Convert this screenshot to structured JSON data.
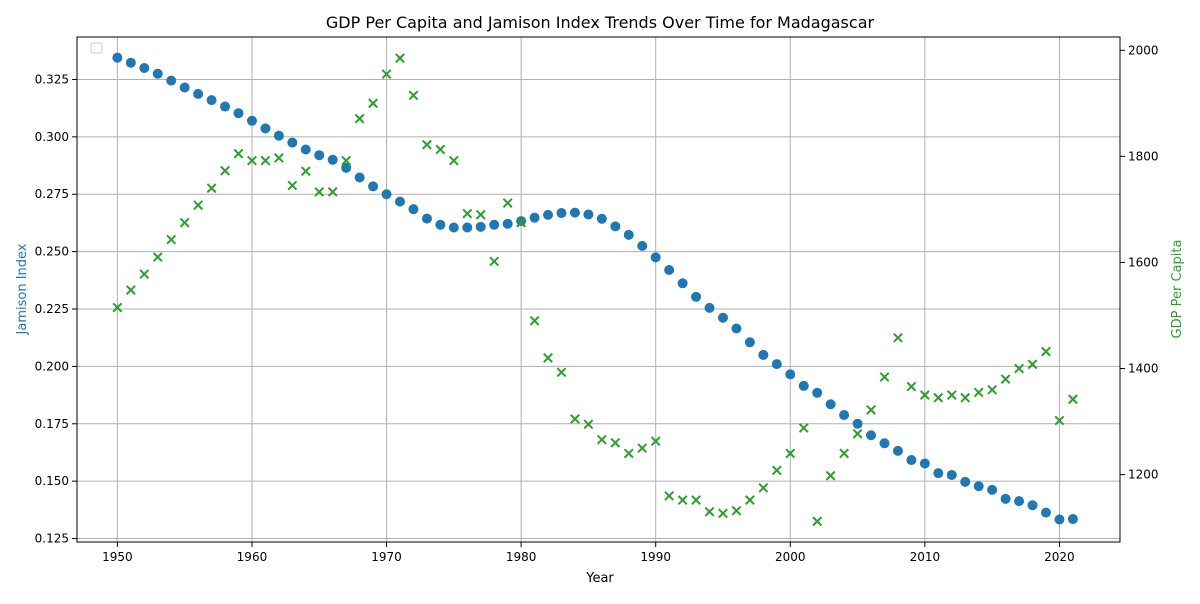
{
  "chart_data": {
    "type": "scatter",
    "title": "GDP Per Capita and Jamison Index Trends Over Time for Madagascar",
    "xlabel": "Year",
    "ylabel_left": "Jamison Index",
    "ylabel_right": "GDP Per Capita",
    "xlim": [
      1947,
      2024.5
    ],
    "ylim_left": [
      0.1235,
      0.3435
    ],
    "ylim_right": [
      1073,
      2025
    ],
    "x_ticks": [
      1950,
      1960,
      1970,
      1980,
      1990,
      2000,
      2010,
      2020
    ],
    "y_ticks_left": [
      0.125,
      0.15,
      0.175,
      0.2,
      0.225,
      0.25,
      0.275,
      0.3,
      0.325
    ],
    "y_ticks_left_labels": [
      "0.125",
      "0.150",
      "0.175",
      "0.200",
      "0.225",
      "0.250",
      "0.275",
      "0.300",
      "0.325"
    ],
    "y_ticks_right": [
      1200,
      1400,
      1600,
      1800,
      2000
    ],
    "grid": true,
    "legend_position": "top-left",
    "colors": {
      "left": "#1f77b4",
      "right": "#2ca02c"
    },
    "x": [
      1950,
      1951,
      1952,
      1953,
      1954,
      1955,
      1956,
      1957,
      1958,
      1959,
      1960,
      1961,
      1962,
      1963,
      1964,
      1965,
      1966,
      1967,
      1968,
      1969,
      1970,
      1971,
      1972,
      1973,
      1974,
      1975,
      1976,
      1977,
      1978,
      1979,
      1980,
      1981,
      1982,
      1983,
      1984,
      1985,
      1986,
      1987,
      1988,
      1989,
      1990,
      1991,
      1992,
      1993,
      1994,
      1995,
      1996,
      1997,
      1998,
      1999,
      2000,
      2001,
      2002,
      2003,
      2004,
      2005,
      2006,
      2007,
      2008,
      2009,
      2010,
      2011,
      2012,
      2013,
      2014,
      2015,
      2016,
      2017,
      2018,
      2019,
      2020,
      2021
    ],
    "series": [
      {
        "axis": "left",
        "marker": "circle",
        "values": [
          0.3345,
          0.3323,
          0.33,
          0.3275,
          0.3245,
          0.3215,
          0.3187,
          0.316,
          0.3132,
          0.3103,
          0.307,
          0.3037,
          0.3005,
          0.2975,
          0.2945,
          0.292,
          0.29,
          0.2865,
          0.2823,
          0.2784,
          0.275,
          0.2718,
          0.2685,
          0.2644,
          0.2617,
          0.2605,
          0.2605,
          0.2608,
          0.2617,
          0.2621,
          0.2633,
          0.2648,
          0.266,
          0.2668,
          0.267,
          0.2662,
          0.2643,
          0.261,
          0.2573,
          0.2525,
          0.2475,
          0.242,
          0.2362,
          0.2303,
          0.2255,
          0.2212,
          0.2165,
          0.2105,
          0.205,
          0.201,
          0.1965,
          0.1915,
          0.1885,
          0.1835,
          0.1788,
          0.175,
          0.17,
          0.1665,
          0.1632,
          0.1592,
          0.1577,
          0.1535,
          0.1527,
          0.1497,
          0.1478,
          0.1462,
          0.1423,
          0.1413,
          0.1395,
          0.1363,
          0.1333,
          0.1335
        ]
      },
      {
        "axis": "right",
        "marker": "x",
        "values": [
          1515,
          1548,
          1578,
          1610,
          1643,
          1675,
          1708,
          1740,
          1773,
          1805,
          1792,
          1792,
          1797,
          1745,
          1772,
          1733,
          1733,
          1792,
          1871,
          1900,
          1955,
          1985,
          1915,
          1822,
          1813,
          1792,
          1692,
          1690,
          1602,
          1712,
          1675,
          1490,
          1420,
          1393,
          1305,
          1295,
          1266,
          1260,
          1240,
          1250,
          1263,
          1160,
          1152,
          1152,
          1130,
          1127,
          1132,
          1152,
          1175,
          1208,
          1240,
          1288,
          1112,
          1198,
          1240,
          1277,
          1322,
          1384,
          1458,
          1366,
          1350,
          1345,
          1350,
          1345,
          1355,
          1360,
          1380,
          1400,
          1408,
          1432,
          1302,
          1342
        ]
      }
    ]
  }
}
